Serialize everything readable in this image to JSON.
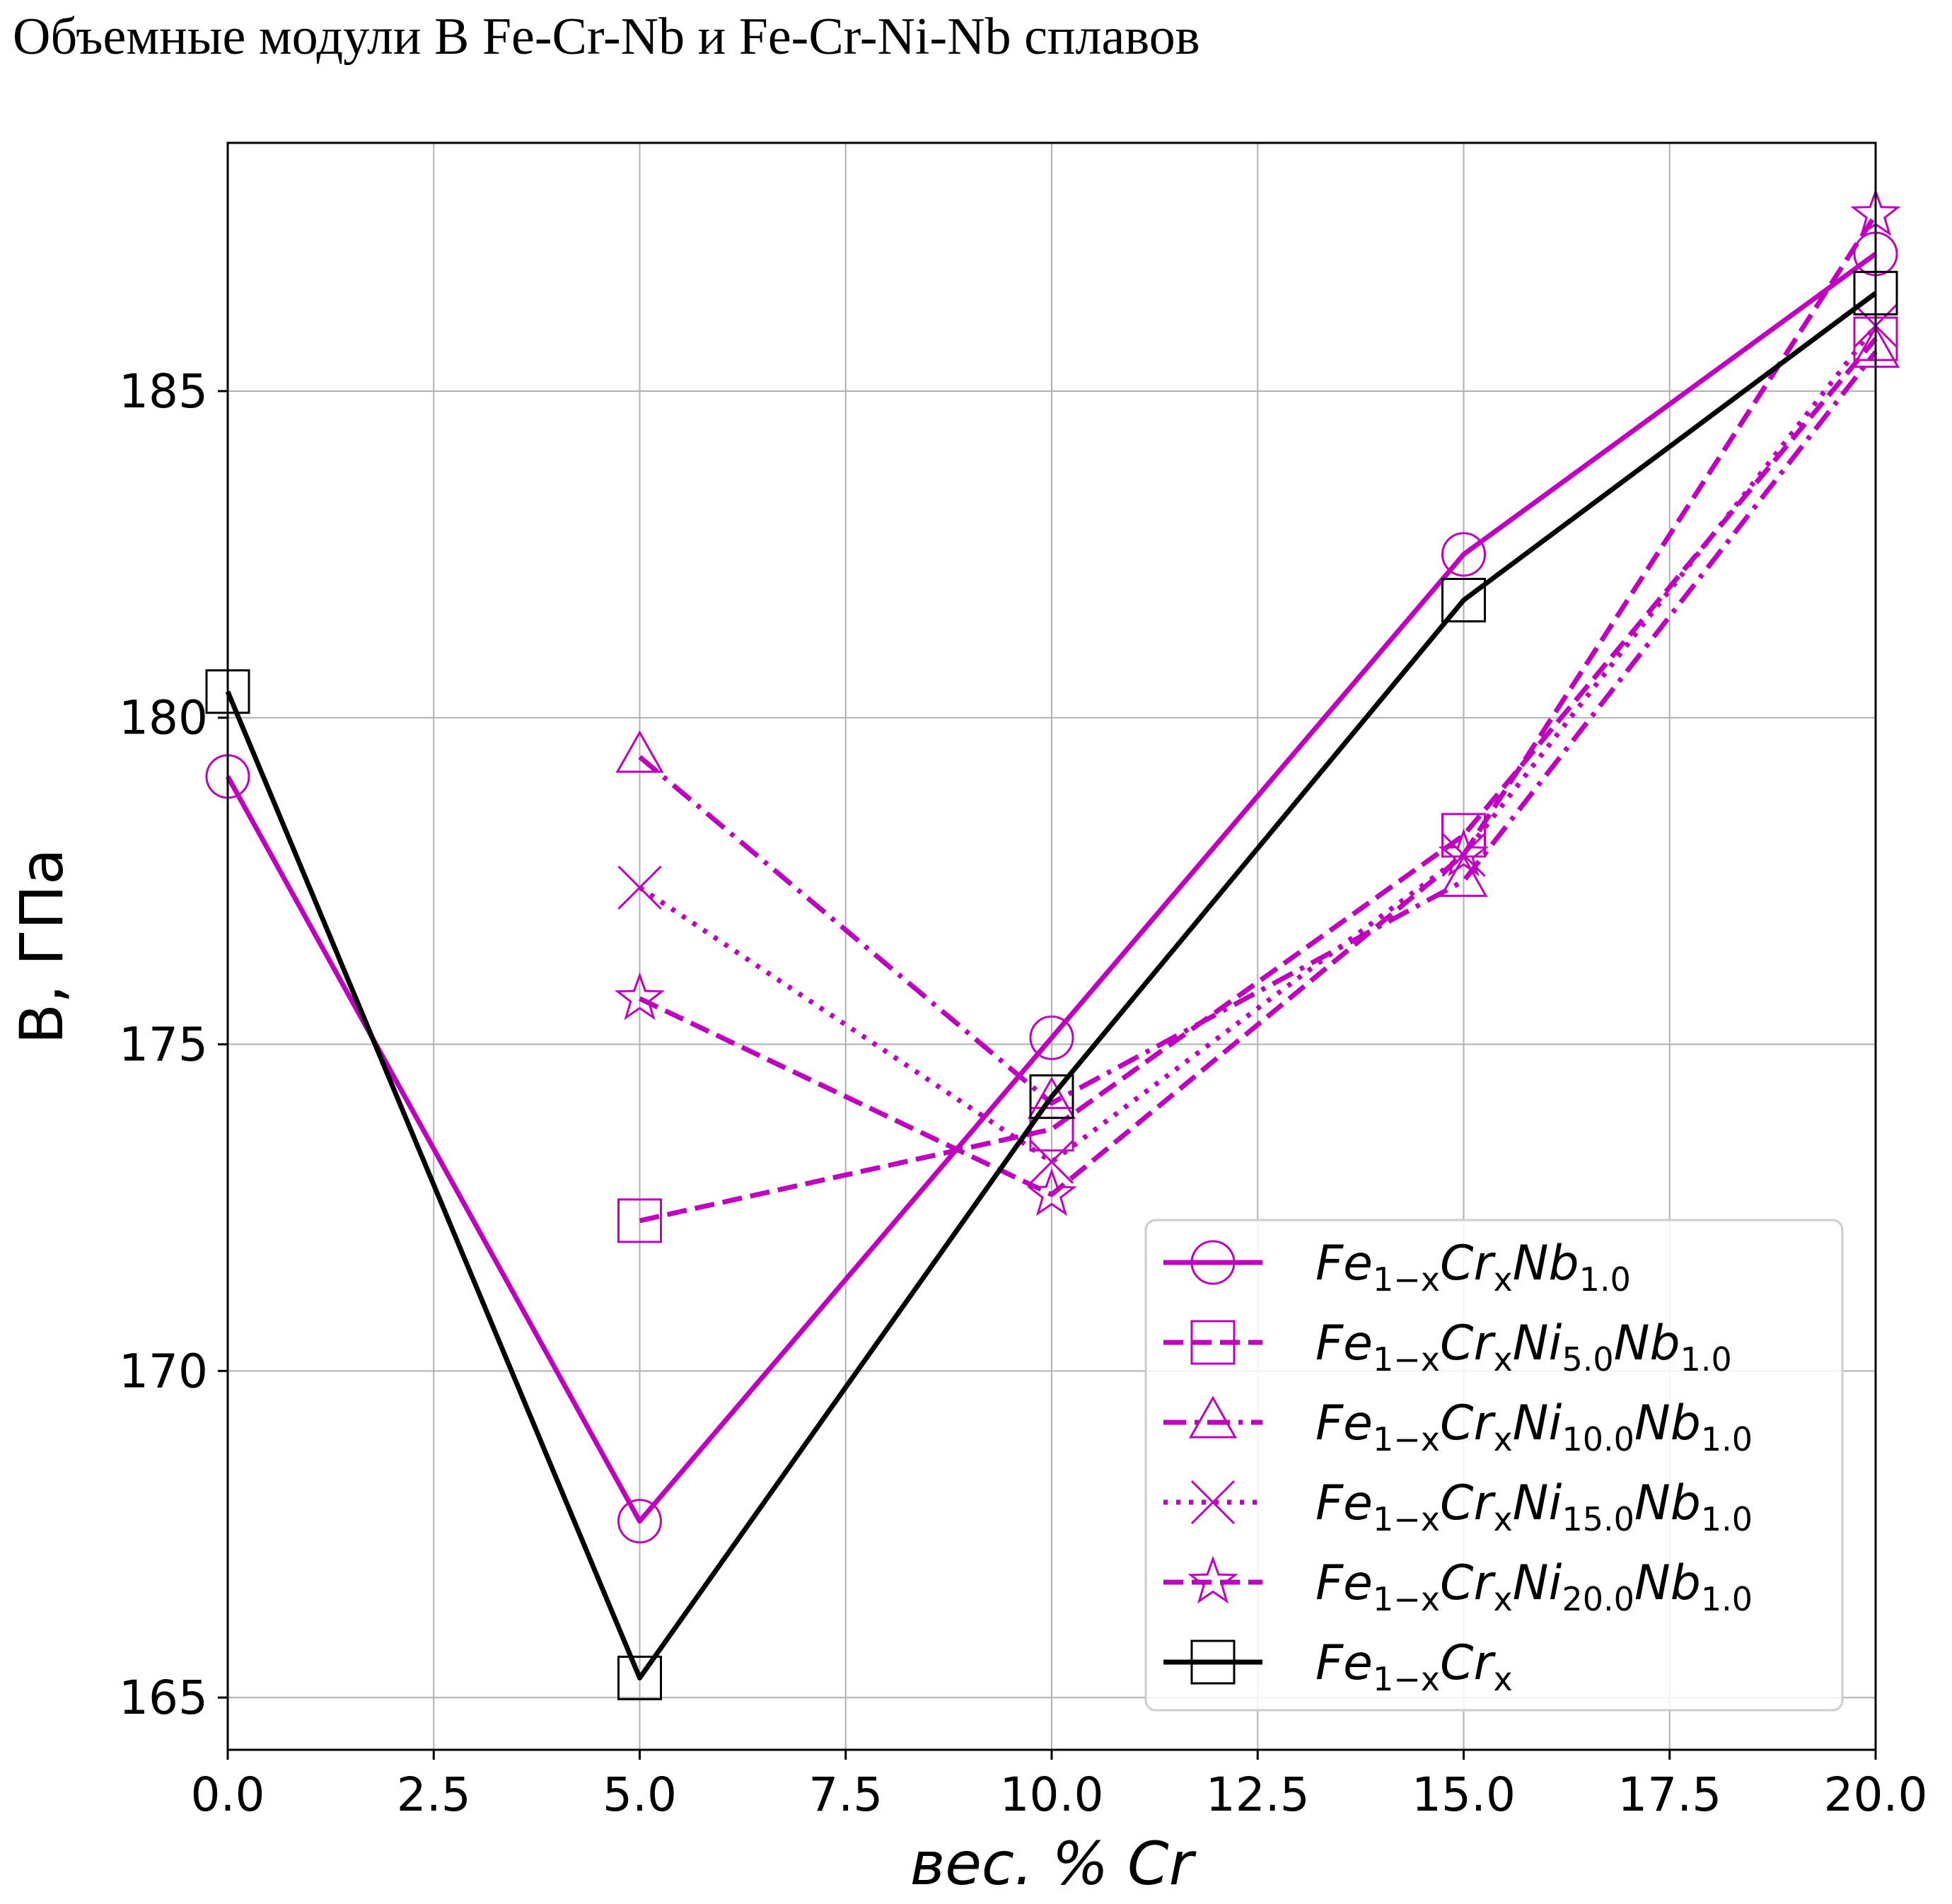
{
  "title": "Объемные модули B Fe-Cr-Nb и Fe-Cr-Ni-Nb сплавов",
  "chart_data": {
    "type": "line",
    "title": "Объемные модули B Fe-Cr-Nb и Fe-Cr-Ni-Nb сплавов",
    "xlabel": "вес. % Cr",
    "ylabel": "B, ГПа",
    "xlim": [
      0,
      20
    ],
    "ylim": [
      164.2,
      188.8
    ],
    "xticks": [
      "0.0",
      "2.5",
      "5.0",
      "7.5",
      "10.0",
      "12.5",
      "15.0",
      "17.5",
      "20.0"
    ],
    "yticks": [
      "165",
      "170",
      "175",
      "180",
      "185"
    ],
    "grid": true,
    "legend_position": "lower-right",
    "series": [
      {
        "name": "Fe1-xCrxNb1.0",
        "label_parts": [
          "Fe",
          "1−x",
          "Cr",
          "x",
          "Nb",
          "1.0"
        ],
        "color": "#bf00bf",
        "style": "solid",
        "marker": "circle",
        "x": [
          0,
          5,
          10,
          15,
          20
        ],
        "y": [
          179.1,
          167.7,
          175.1,
          182.5,
          187.1
        ]
      },
      {
        "name": "Fe1-xCrxNi5.0Nb1.0",
        "label_parts": [
          "Fe",
          "1−x",
          "Cr",
          "x",
          "Ni",
          "5.0",
          "Nb",
          "1.0"
        ],
        "color": "#bf00bf",
        "style": "dashed",
        "marker": "square",
        "x": [
          5,
          10,
          15,
          20
        ],
        "y": [
          172.3,
          173.7,
          178.2,
          185.8
        ]
      },
      {
        "name": "Fe1-xCrxNi10.0Nb1.0",
        "label_parts": [
          "Fe",
          "1−x",
          "Cr",
          "x",
          "Ni",
          "10.0",
          "Nb",
          "1.0"
        ],
        "color": "#bf00bf",
        "style": "dashdot",
        "marker": "triangle",
        "x": [
          5,
          10,
          15,
          20
        ],
        "y": [
          179.4,
          174.1,
          177.5,
          185.6
        ]
      },
      {
        "name": "Fe1-xCrxNi15.0Nb1.0",
        "label_parts": [
          "Fe",
          "1−x",
          "Cr",
          "x",
          "Ni",
          "15.0",
          "Nb",
          "1.0"
        ],
        "color": "#bf00bf",
        "style": "dotted",
        "marker": "x",
        "x": [
          5,
          10,
          15,
          20
        ],
        "y": [
          177.4,
          173.2,
          177.9,
          186.0
        ]
      },
      {
        "name": "Fe1-xCrxNi20.0Nb1.0",
        "label_parts": [
          "Fe",
          "1−x",
          "Cr",
          "x",
          "Ni",
          "20.0",
          "Nb",
          "1.0"
        ],
        "color": "#bf00bf",
        "style": "dashed",
        "marker": "star",
        "x": [
          5,
          10,
          15,
          20
        ],
        "y": [
          175.7,
          172.7,
          177.9,
          187.7
        ]
      },
      {
        "name": "Fe1-xCrx",
        "label_parts": [
          "Fe",
          "1−x",
          "Cr",
          "x"
        ],
        "color": "#000000",
        "style": "solid",
        "marker": "square",
        "x": [
          0,
          5,
          10,
          15,
          20
        ],
        "y": [
          180.4,
          165.3,
          174.2,
          181.8,
          186.5
        ]
      }
    ]
  }
}
